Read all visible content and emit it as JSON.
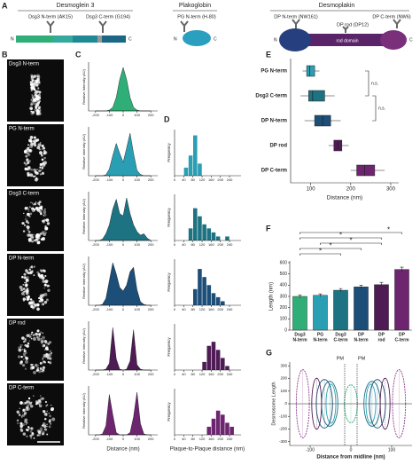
{
  "schematic": {
    "panel": "A",
    "proteins": [
      {
        "name": "Desmoglein 3",
        "antibodies": [
          "Dsg3 N-term (AK15)",
          "Dsg3 C-term (G194)"
        ]
      },
      {
        "name": "Plakoglobin",
        "antibodies": [
          "PG N-term (H-80)"
        ]
      },
      {
        "name": "Desmoplakin",
        "antibodies": [
          "DP N-term (NW161)",
          "DP rod (DP12)",
          "DP C-term (NW6)"
        ]
      }
    ],
    "terminals": [
      "N",
      "C"
    ],
    "domain": "rod domain"
  },
  "images": {
    "panel": "B",
    "labels": [
      "Dsg3 N-term",
      "PG N-term",
      "Dsg3 C-term",
      "DP N-term",
      "DP rod",
      "DP C-term"
    ]
  },
  "chart_data": [
    {
      "type": "profile",
      "panel": "C",
      "ylabel": "Relative Intensity (AU)",
      "xlabel": "Distance (nm)",
      "x": [
        -200,
        -175,
        -150,
        -125,
        -100,
        -75,
        -50,
        -25,
        0,
        25,
        50,
        75,
        100,
        125,
        150,
        175,
        200
      ],
      "xlim": [
        -250,
        250
      ],
      "xticks": [
        -200,
        -100,
        0,
        100,
        200
      ],
      "ylim": [
        0,
        1.05
      ],
      "series": [
        {
          "color": "#2fae78",
          "values": [
            0,
            0,
            0,
            0,
            0.02,
            0.08,
            0.3,
            0.7,
            0.97,
            0.7,
            0.3,
            0.08,
            0.02,
            0,
            0,
            0,
            0
          ]
        },
        {
          "color": "#2a9fb3",
          "values": [
            0,
            0,
            0,
            0.02,
            0.15,
            0.45,
            0.72,
            0.5,
            0.3,
            0.62,
            0.95,
            0.5,
            0.12,
            0.03,
            0,
            0,
            0
          ]
        },
        {
          "color": "#1d7382",
          "values": [
            0,
            0,
            0.03,
            0.15,
            0.35,
            0.7,
            0.92,
            0.6,
            0.55,
            0.95,
            0.6,
            0.35,
            0.2,
            0.12,
            0.15,
            0.05,
            0
          ]
        },
        {
          "color": "#1c4e78",
          "values": [
            0,
            0,
            0.02,
            0.15,
            0.55,
            0.95,
            0.7,
            0.4,
            0.32,
            0.45,
            0.75,
            0.85,
            0.35,
            0.08,
            0.02,
            0,
            0
          ]
        },
        {
          "color": "#4e1b55",
          "values": [
            0,
            0,
            0,
            0.02,
            0.15,
            0.95,
            0.25,
            0.02,
            0,
            0.02,
            0.2,
            0.9,
            0.12,
            0.02,
            0,
            0,
            0
          ]
        },
        {
          "color": "#6d2570",
          "values": [
            0,
            0,
            0.02,
            0.2,
            0.9,
            0.45,
            0.05,
            0,
            0,
            0,
            0.05,
            0.4,
            0.95,
            0.25,
            0.02,
            0,
            0
          ]
        }
      ]
    },
    {
      "type": "histogram",
      "panel": "D",
      "ylabel": "Frequency",
      "xlabel": "Plaque-to-Plaque distance (nm)",
      "bins": [
        0,
        20,
        40,
        60,
        80,
        100,
        120,
        140,
        160,
        180,
        200,
        220,
        240,
        260,
        280
      ],
      "xlim": [
        0,
        290
      ],
      "xticks": [
        0,
        40,
        80,
        120,
        160,
        200,
        240
      ],
      "ylim": [
        0,
        11
      ],
      "series": [
        {
          "color": "#2a9fb3",
          "values": [
            0,
            0,
            2,
            5,
            10,
            3,
            0,
            0,
            0,
            0,
            0,
            0,
            0,
            0
          ]
        },
        {
          "color": "#1d7382",
          "values": [
            0,
            0,
            0,
            3,
            8,
            6,
            4,
            3,
            2,
            1,
            0,
            1,
            0,
            0
          ]
        },
        {
          "color": "#1c4e78",
          "values": [
            0,
            0,
            0,
            0,
            4,
            9,
            7,
            5,
            3,
            2,
            1,
            0,
            0,
            0
          ]
        },
        {
          "color": "#4e1b55",
          "values": [
            0,
            0,
            0,
            0,
            0,
            0,
            2,
            6,
            7,
            5,
            3,
            1,
            0,
            0
          ]
        },
        {
          "color": "#6d2570",
          "values": [
            0,
            0,
            0,
            0,
            0,
            0,
            0,
            2,
            4,
            6,
            5,
            3,
            2,
            0
          ]
        }
      ]
    },
    {
      "type": "box",
      "panel": "E",
      "xlabel": "Distance (nm)",
      "categories": [
        "PG N-term",
        "Dsg3 C-term",
        "DP N-term",
        "DP rod",
        "DP C-term"
      ],
      "colors": [
        "#2a9fb3",
        "#1d7382",
        "#1c4e78",
        "#4e1b55",
        "#6d2570"
      ],
      "boxes": [
        {
          "min": 80,
          "q1": 90,
          "median": 98,
          "q3": 110,
          "max": 122
        },
        {
          "min": 75,
          "q1": 95,
          "median": 105,
          "q3": 135,
          "max": 160
        },
        {
          "min": 85,
          "q1": 110,
          "median": 130,
          "q3": 150,
          "max": 175
        },
        {
          "min": 145,
          "q1": 158,
          "median": 168,
          "q3": 178,
          "max": 195
        },
        {
          "min": 200,
          "q1": 215,
          "median": 235,
          "q3": 260,
          "max": 285
        }
      ],
      "xlim": [
        50,
        320
      ],
      "xticks": [
        100,
        200,
        300
      ],
      "annotations": [
        "n.s.",
        "n.s."
      ]
    },
    {
      "type": "bar",
      "panel": "F",
      "ylabel": "Length (nm)",
      "categories": [
        [
          "Dsg3",
          "N-term"
        ],
        [
          "PG",
          "N-term"
        ],
        [
          "Dsg3",
          "C-term"
        ],
        [
          "DP",
          "N-term"
        ],
        [
          "DP",
          "rod"
        ],
        [
          "DP",
          "C-term"
        ]
      ],
      "values": [
        300,
        310,
        355,
        385,
        405,
        540
      ],
      "errors": [
        12,
        12,
        15,
        15,
        20,
        20
      ],
      "colors": [
        "#2fae78",
        "#2a9fb3",
        "#1d7382",
        "#1c4e78",
        "#4e1b55",
        "#6d2570"
      ],
      "ylim": [
        0,
        600
      ],
      "yticks": [
        0,
        100,
        200,
        300,
        400,
        500,
        600
      ],
      "annotations": [
        "*",
        "*",
        "*",
        "*",
        "*"
      ]
    },
    {
      "type": "ellipses",
      "panel": "G",
      "ylabel": "Desmosome Length",
      "xlabel": "Distance from midline (nm)",
      "xlim": [
        -150,
        150
      ],
      "xticks": [
        -100,
        0,
        100
      ],
      "ylim": [
        -330,
        330
      ],
      "yticks": [
        -300,
        -200,
        -100,
        0,
        100,
        200,
        300
      ],
      "membranes": [
        "PM",
        "PM"
      ],
      "ellipses": [
        {
          "color": "#2fae78",
          "center": 0,
          "half_width": 16,
          "half_length": 150
        },
        {
          "color": "#2a9fb3",
          "center": 49,
          "half_width": 12,
          "half_length": 155
        },
        {
          "color": "#1d7382",
          "center": 52,
          "half_width": 20,
          "half_length": 178
        },
        {
          "color": "#1c4e78",
          "center": 65,
          "half_width": 20,
          "half_length": 192
        },
        {
          "color": "#4e1b55",
          "center": 84,
          "half_width": 12,
          "half_length": 202
        },
        {
          "color": "#8e3a8e",
          "center": 118,
          "half_width": 16,
          "half_length": 270
        }
      ]
    }
  ]
}
